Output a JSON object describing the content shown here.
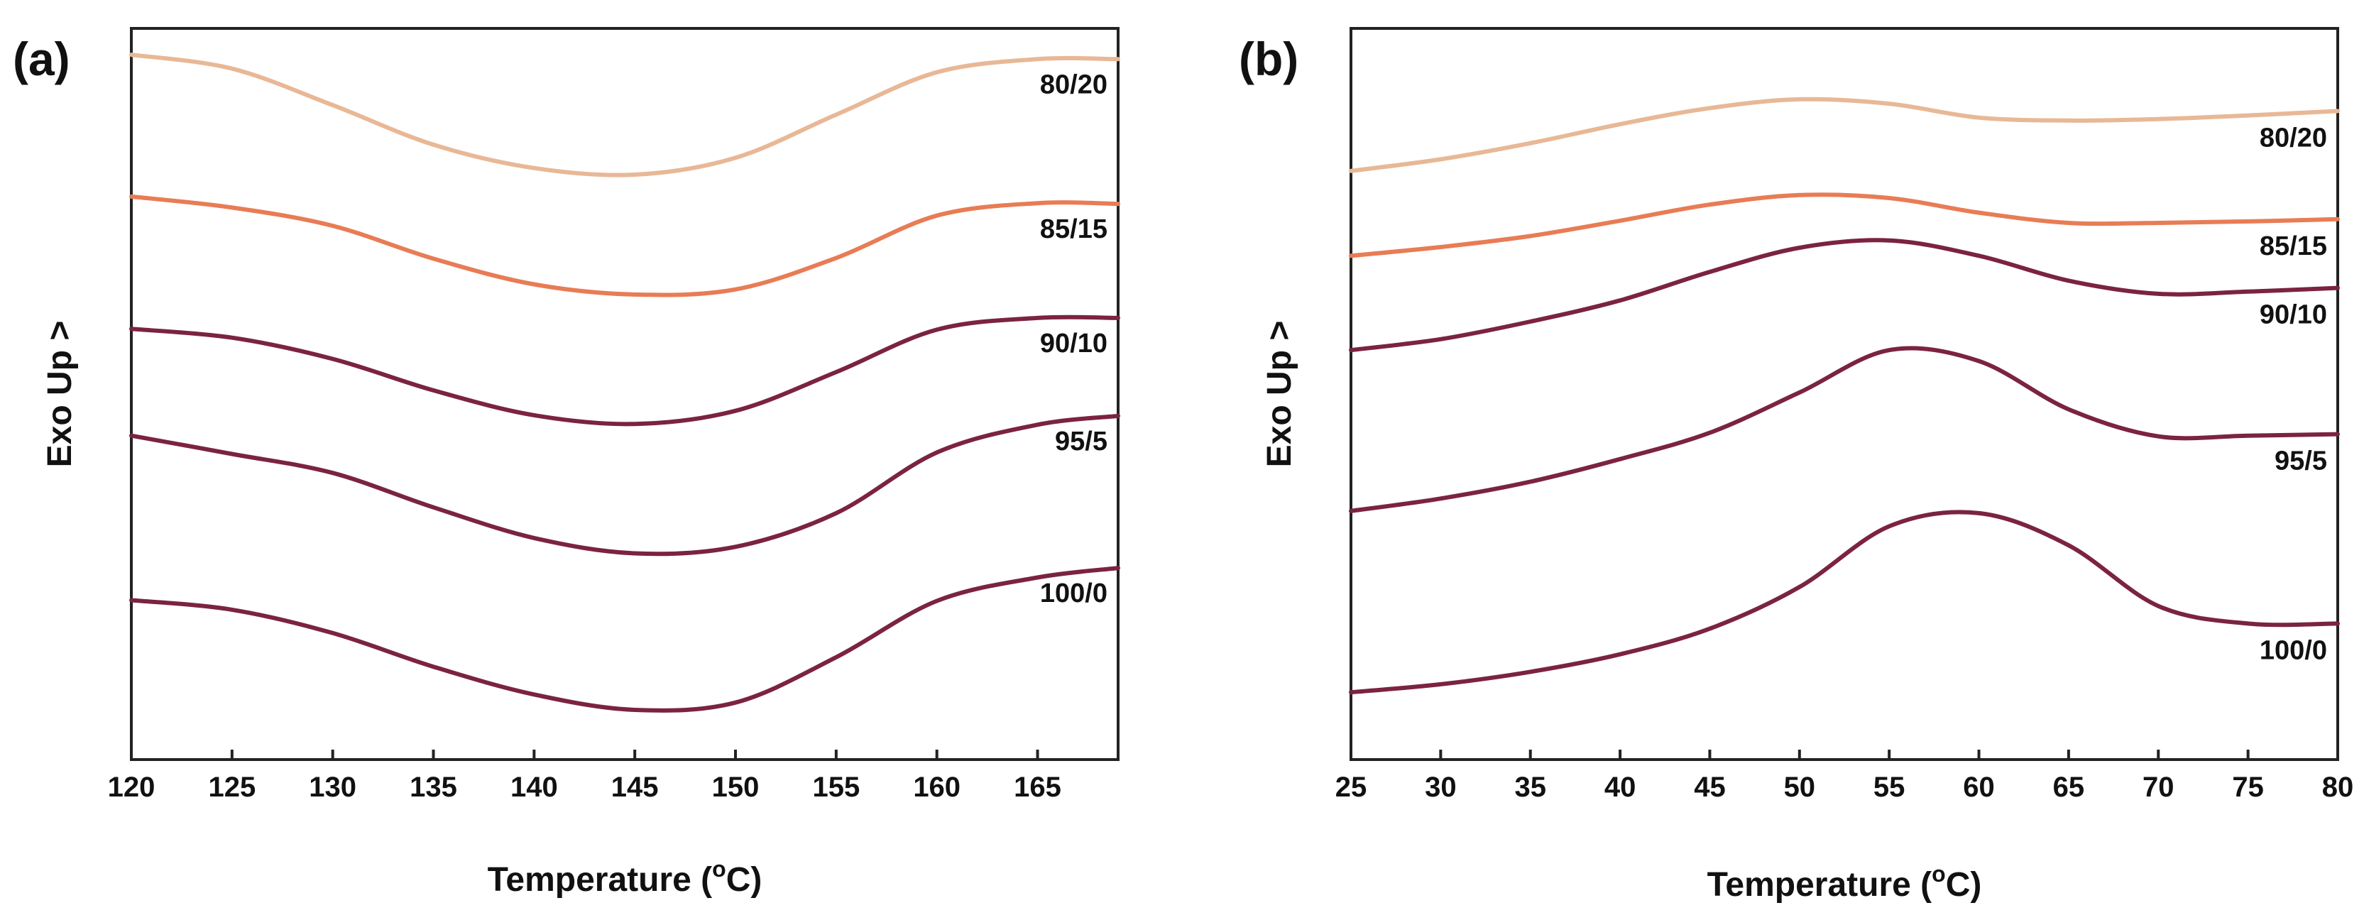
{
  "chart_data": [
    {
      "type": "line",
      "panel_label": "(a)",
      "title": "",
      "xlabel": "Temperature (°C)",
      "xlabel_parts": {
        "pre": "Temperature (",
        "sup": "o",
        "post": "C)"
      },
      "ylabel": "Exo Up >",
      "xlim": [
        120,
        169
      ],
      "ylim": [
        0,
        1
      ],
      "y_ticks_shown": false,
      "x_ticks": [
        120,
        125,
        130,
        135,
        140,
        145,
        150,
        155,
        160,
        165
      ],
      "x_tick_labels": [
        "120",
        "125",
        "130",
        "135",
        "140",
        "145",
        "150",
        "155",
        "160",
        "165"
      ],
      "series": [
        {
          "name": "80/20",
          "color": "#e8b896",
          "x": [
            120,
            125,
            130,
            135,
            140,
            145,
            150,
            155,
            160,
            165,
            169
          ],
          "y": [
            0.964,
            0.945,
            0.895,
            0.841,
            0.809,
            0.8,
            0.823,
            0.882,
            0.94,
            0.958,
            0.958
          ]
        },
        {
          "name": "85/15",
          "color": "#e87c55",
          "x": [
            120,
            125,
            130,
            135,
            140,
            145,
            150,
            155,
            160,
            165,
            169
          ],
          "y": [
            0.77,
            0.755,
            0.73,
            0.685,
            0.65,
            0.636,
            0.643,
            0.686,
            0.744,
            0.761,
            0.76
          ]
        },
        {
          "name": "90/10",
          "color": "#7b2341",
          "x": [
            120,
            125,
            130,
            135,
            140,
            145,
            150,
            155,
            160,
            165,
            169
          ],
          "y": [
            0.589,
            0.577,
            0.548,
            0.505,
            0.471,
            0.459,
            0.477,
            0.53,
            0.588,
            0.604,
            0.604
          ]
        },
        {
          "name": "95/5",
          "color": "#7b2341",
          "x": [
            120,
            125,
            130,
            135,
            140,
            145,
            150,
            155,
            160,
            165,
            169
          ],
          "y": [
            0.443,
            0.418,
            0.392,
            0.345,
            0.303,
            0.282,
            0.291,
            0.337,
            0.42,
            0.458,
            0.47
          ]
        },
        {
          "name": "100/0",
          "color": "#7b2341",
          "x": [
            120,
            125,
            130,
            135,
            140,
            145,
            150,
            155,
            160,
            165,
            169
          ],
          "y": [
            0.218,
            0.205,
            0.173,
            0.127,
            0.089,
            0.068,
            0.078,
            0.14,
            0.217,
            0.249,
            0.262
          ]
        }
      ],
      "legend": "inline labels on right"
    },
    {
      "type": "line",
      "panel_label": "(b)",
      "title": "",
      "xlabel": "Temperature (°C)",
      "xlabel_parts": {
        "pre": "Temperature (",
        "sup": "o",
        "post": "C)"
      },
      "ylabel": "Exo Up >",
      "xlim": [
        25,
        80
      ],
      "ylim": [
        0,
        1
      ],
      "y_ticks_shown": false,
      "x_ticks": [
        25,
        30,
        35,
        40,
        45,
        50,
        55,
        60,
        65,
        70,
        75,
        80
      ],
      "x_tick_labels": [
        "25",
        "30",
        "35",
        "40",
        "45",
        "50",
        "55",
        "60",
        "65",
        "70",
        "75",
        "80"
      ],
      "series": [
        {
          "name": "80/20",
          "color": "#e8b896",
          "x": [
            25,
            30,
            35,
            40,
            45,
            50,
            55,
            60,
            65,
            70,
            75,
            80
          ],
          "y": [
            0.805,
            0.821,
            0.843,
            0.869,
            0.891,
            0.903,
            0.897,
            0.878,
            0.874,
            0.876,
            0.881,
            0.887
          ]
        },
        {
          "name": "85/15",
          "color": "#e87c55",
          "x": [
            25,
            30,
            35,
            40,
            45,
            50,
            55,
            60,
            65,
            70,
            75,
            80
          ],
          "y": [
            0.689,
            0.701,
            0.716,
            0.737,
            0.759,
            0.772,
            0.768,
            0.748,
            0.734,
            0.734,
            0.736,
            0.739
          ]
        },
        {
          "name": "90/10",
          "color": "#7b2341",
          "x": [
            25,
            30,
            35,
            40,
            45,
            50,
            55,
            60,
            65,
            70,
            75,
            80
          ],
          "y": [
            0.56,
            0.575,
            0.599,
            0.628,
            0.667,
            0.7,
            0.71,
            0.689,
            0.655,
            0.637,
            0.64,
            0.645
          ]
        },
        {
          "name": "95/5",
          "color": "#7b2341",
          "x": [
            25,
            30,
            35,
            40,
            45,
            50,
            55,
            60,
            65,
            70,
            75,
            80
          ],
          "y": [
            0.34,
            0.357,
            0.38,
            0.411,
            0.447,
            0.502,
            0.56,
            0.545,
            0.479,
            0.442,
            0.443,
            0.445
          ]
        },
        {
          "name": "100/0",
          "color": "#7b2341",
          "x": [
            25,
            30,
            35,
            40,
            45,
            50,
            55,
            60,
            65,
            70,
            75,
            80
          ],
          "y": [
            0.092,
            0.103,
            0.12,
            0.144,
            0.179,
            0.236,
            0.319,
            0.337,
            0.293,
            0.21,
            0.186,
            0.186
          ]
        }
      ],
      "legend": "inline labels on right"
    }
  ]
}
